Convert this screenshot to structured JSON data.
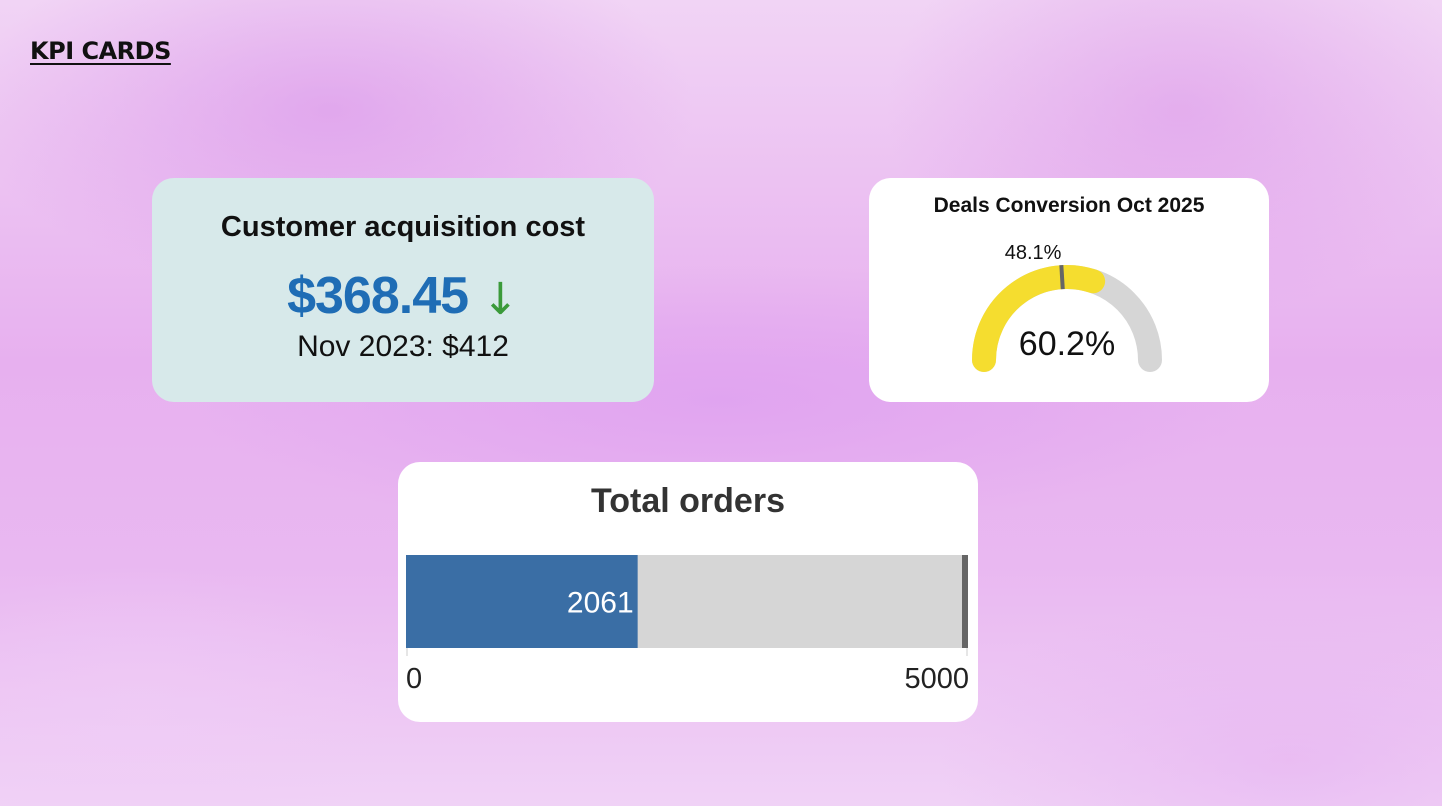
{
  "header": {
    "title": "KPI CARDS"
  },
  "cac_card": {
    "title": "Customer acquisition cost",
    "value": "$368.45",
    "trend_icon": "arrow-down-icon",
    "trend_glyph": "↓",
    "comparison": "Nov 2023: $412"
  },
  "colors": {
    "cac_value": "#1f6db5",
    "trend_down": "#3a9a3a",
    "gauge_fill": "#f5dd2f",
    "gauge_track": "#d6d6d6",
    "bar_fill": "#3a6ea5",
    "bar_track": "#d6d6d6",
    "target_marker": "#666666"
  },
  "chart_data": [
    {
      "type": "gauge",
      "title": "Deals Conversion Oct 2025",
      "value": 60.2,
      "value_label": "60.2%",
      "min": 0,
      "max": 100,
      "target": 48.1,
      "target_label": "48.1%"
    },
    {
      "type": "bar",
      "title": "Total orders",
      "categories": [
        ""
      ],
      "values": [
        2061
      ],
      "value_label": "2061",
      "target": 5000,
      "xlim": [
        0,
        5000
      ],
      "tick_labels": [
        "0",
        "5000"
      ]
    }
  ]
}
